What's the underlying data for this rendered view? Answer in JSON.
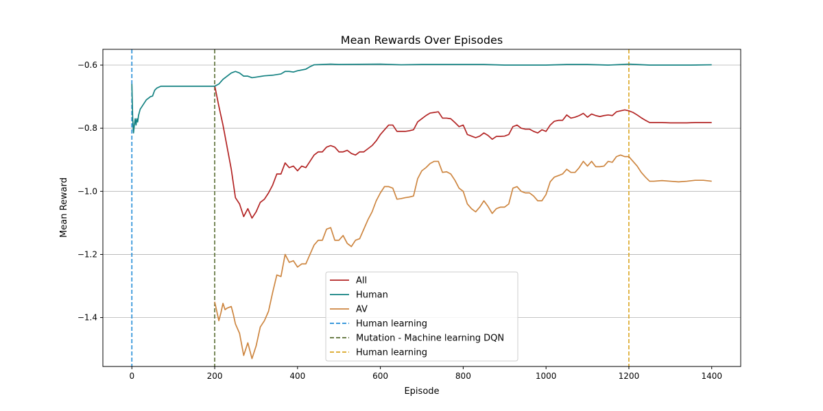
{
  "chart_data": {
    "type": "line",
    "title": "Mean Rewards Over Episodes",
    "xlabel": "Episode",
    "ylabel": "Mean Reward",
    "xlim": [
      -70,
      1470
    ],
    "ylim": [
      -1.555,
      -0.55
    ],
    "xticks": [
      0,
      200,
      400,
      600,
      800,
      1000,
      1200,
      1400
    ],
    "yticks": [
      -1.4,
      -1.2,
      -1.0,
      -0.8,
      -0.6
    ],
    "grid": "horizontal",
    "legend_position": "lower-center",
    "series": [
      {
        "name": "All",
        "color": "#b22222",
        "style": "solid",
        "points": [
          [
            200,
            -0.665
          ],
          [
            210,
            -0.73
          ],
          [
            220,
            -0.79
          ],
          [
            230,
            -0.86
          ],
          [
            240,
            -0.93
          ],
          [
            250,
            -1.02
          ],
          [
            260,
            -1.04
          ],
          [
            270,
            -1.08
          ],
          [
            280,
            -1.055
          ],
          [
            290,
            -1.085
          ],
          [
            300,
            -1.065
          ],
          [
            310,
            -1.035
          ],
          [
            320,
            -1.025
          ],
          [
            330,
            -1.005
          ],
          [
            340,
            -0.98
          ],
          [
            350,
            -0.945
          ],
          [
            360,
            -0.945
          ],
          [
            370,
            -0.91
          ],
          [
            380,
            -0.925
          ],
          [
            390,
            -0.92
          ],
          [
            400,
            -0.935
          ],
          [
            410,
            -0.92
          ],
          [
            420,
            -0.925
          ],
          [
            430,
            -0.905
          ],
          [
            440,
            -0.885
          ],
          [
            450,
            -0.875
          ],
          [
            460,
            -0.875
          ],
          [
            470,
            -0.86
          ],
          [
            480,
            -0.855
          ],
          [
            490,
            -0.86
          ],
          [
            500,
            -0.875
          ],
          [
            510,
            -0.875
          ],
          [
            520,
            -0.87
          ],
          [
            530,
            -0.88
          ],
          [
            540,
            -0.885
          ],
          [
            550,
            -0.875
          ],
          [
            560,
            -0.875
          ],
          [
            570,
            -0.865
          ],
          [
            580,
            -0.855
          ],
          [
            590,
            -0.84
          ],
          [
            600,
            -0.82
          ],
          [
            610,
            -0.805
          ],
          [
            620,
            -0.79
          ],
          [
            630,
            -0.79
          ],
          [
            640,
            -0.81
          ],
          [
            650,
            -0.81
          ],
          [
            660,
            -0.81
          ],
          [
            670,
            -0.808
          ],
          [
            680,
            -0.805
          ],
          [
            690,
            -0.78
          ],
          [
            700,
            -0.77
          ],
          [
            710,
            -0.76
          ],
          [
            720,
            -0.752
          ],
          [
            730,
            -0.75
          ],
          [
            740,
            -0.748
          ],
          [
            750,
            -0.768
          ],
          [
            760,
            -0.768
          ],
          [
            770,
            -0.77
          ],
          [
            780,
            -0.782
          ],
          [
            790,
            -0.795
          ],
          [
            800,
            -0.79
          ],
          [
            810,
            -0.82
          ],
          [
            820,
            -0.825
          ],
          [
            830,
            -0.83
          ],
          [
            840,
            -0.825
          ],
          [
            850,
            -0.815
          ],
          [
            860,
            -0.823
          ],
          [
            870,
            -0.835
          ],
          [
            880,
            -0.826
          ],
          [
            890,
            -0.826
          ],
          [
            900,
            -0.825
          ],
          [
            910,
            -0.82
          ],
          [
            920,
            -0.795
          ],
          [
            930,
            -0.79
          ],
          [
            940,
            -0.8
          ],
          [
            950,
            -0.803
          ],
          [
            960,
            -0.803
          ],
          [
            970,
            -0.81
          ],
          [
            980,
            -0.815
          ],
          [
            990,
            -0.805
          ],
          [
            1000,
            -0.81
          ],
          [
            1010,
            -0.79
          ],
          [
            1020,
            -0.778
          ],
          [
            1030,
            -0.775
          ],
          [
            1040,
            -0.775
          ],
          [
            1050,
            -0.758
          ],
          [
            1060,
            -0.768
          ],
          [
            1070,
            -0.765
          ],
          [
            1080,
            -0.76
          ],
          [
            1090,
            -0.753
          ],
          [
            1100,
            -0.765
          ],
          [
            1110,
            -0.755
          ],
          [
            1120,
            -0.76
          ],
          [
            1130,
            -0.763
          ],
          [
            1140,
            -0.76
          ],
          [
            1150,
            -0.758
          ],
          [
            1160,
            -0.76
          ],
          [
            1170,
            -0.748
          ],
          [
            1180,
            -0.745
          ],
          [
            1190,
            -0.742
          ],
          [
            1200,
            -0.745
          ],
          [
            1210,
            -0.75
          ],
          [
            1220,
            -0.758
          ],
          [
            1230,
            -0.767
          ],
          [
            1240,
            -0.775
          ],
          [
            1250,
            -0.782
          ],
          [
            1260,
            -0.782
          ],
          [
            1280,
            -0.782
          ],
          [
            1300,
            -0.783
          ],
          [
            1320,
            -0.783
          ],
          [
            1340,
            -0.783
          ],
          [
            1360,
            -0.782
          ],
          [
            1380,
            -0.782
          ],
          [
            1400,
            -0.782
          ]
        ]
      },
      {
        "name": "Human",
        "color": "#118080",
        "style": "solid",
        "points": [
          [
            0,
            -0.66
          ],
          [
            2,
            -0.77
          ],
          [
            4,
            -0.815
          ],
          [
            6,
            -0.79
          ],
          [
            8,
            -0.77
          ],
          [
            10,
            -0.79
          ],
          [
            12,
            -0.77
          ],
          [
            14,
            -0.78
          ],
          [
            16,
            -0.76
          ],
          [
            18,
            -0.75
          ],
          [
            20,
            -0.74
          ],
          [
            25,
            -0.73
          ],
          [
            30,
            -0.72
          ],
          [
            35,
            -0.71
          ],
          [
            40,
            -0.705
          ],
          [
            45,
            -0.7
          ],
          [
            50,
            -0.698
          ],
          [
            55,
            -0.68
          ],
          [
            60,
            -0.673
          ],
          [
            65,
            -0.67
          ],
          [
            70,
            -0.667
          ],
          [
            80,
            -0.667
          ],
          [
            100,
            -0.667
          ],
          [
            150,
            -0.667
          ],
          [
            200,
            -0.667
          ],
          [
            210,
            -0.66
          ],
          [
            220,
            -0.645
          ],
          [
            230,
            -0.635
          ],
          [
            240,
            -0.625
          ],
          [
            250,
            -0.62
          ],
          [
            260,
            -0.625
          ],
          [
            270,
            -0.635
          ],
          [
            280,
            -0.635
          ],
          [
            290,
            -0.64
          ],
          [
            300,
            -0.638
          ],
          [
            320,
            -0.634
          ],
          [
            340,
            -0.632
          ],
          [
            360,
            -0.628
          ],
          [
            370,
            -0.62
          ],
          [
            380,
            -0.62
          ],
          [
            390,
            -0.622
          ],
          [
            400,
            -0.618
          ],
          [
            420,
            -0.613
          ],
          [
            430,
            -0.605
          ],
          [
            440,
            -0.599
          ],
          [
            460,
            -0.598
          ],
          [
            480,
            -0.597
          ],
          [
            500,
            -0.598
          ],
          [
            600,
            -0.597
          ],
          [
            650,
            -0.599
          ],
          [
            700,
            -0.598
          ],
          [
            750,
            -0.598
          ],
          [
            800,
            -0.598
          ],
          [
            850,
            -0.598
          ],
          [
            900,
            -0.6
          ],
          [
            950,
            -0.6
          ],
          [
            1000,
            -0.6
          ],
          [
            1050,
            -0.598
          ],
          [
            1100,
            -0.598
          ],
          [
            1150,
            -0.6
          ],
          [
            1200,
            -0.597
          ],
          [
            1250,
            -0.6
          ],
          [
            1300,
            -0.6
          ],
          [
            1350,
            -0.6
          ],
          [
            1400,
            -0.599
          ]
        ]
      },
      {
        "name": "AV",
        "color": "#cd853f",
        "style": "solid",
        "points": [
          [
            200,
            -1.35
          ],
          [
            210,
            -1.41
          ],
          [
            215,
            -1.385
          ],
          [
            220,
            -1.355
          ],
          [
            225,
            -1.375
          ],
          [
            230,
            -1.37
          ],
          [
            240,
            -1.365
          ],
          [
            245,
            -1.39
          ],
          [
            250,
            -1.42
          ],
          [
            260,
            -1.45
          ],
          [
            270,
            -1.52
          ],
          [
            280,
            -1.48
          ],
          [
            290,
            -1.53
          ],
          [
            300,
            -1.49
          ],
          [
            310,
            -1.43
          ],
          [
            320,
            -1.41
          ],
          [
            330,
            -1.38
          ],
          [
            340,
            -1.32
          ],
          [
            350,
            -1.265
          ],
          [
            360,
            -1.27
          ],
          [
            370,
            -1.2
          ],
          [
            380,
            -1.225
          ],
          [
            390,
            -1.22
          ],
          [
            400,
            -1.24
          ],
          [
            410,
            -1.23
          ],
          [
            420,
            -1.23
          ],
          [
            430,
            -1.2
          ],
          [
            440,
            -1.17
          ],
          [
            450,
            -1.155
          ],
          [
            460,
            -1.155
          ],
          [
            470,
            -1.12
          ],
          [
            480,
            -1.115
          ],
          [
            490,
            -1.155
          ],
          [
            500,
            -1.155
          ],
          [
            510,
            -1.14
          ],
          [
            520,
            -1.165
          ],
          [
            530,
            -1.175
          ],
          [
            540,
            -1.155
          ],
          [
            550,
            -1.15
          ],
          [
            560,
            -1.12
          ],
          [
            570,
            -1.09
          ],
          [
            580,
            -1.065
          ],
          [
            590,
            -1.03
          ],
          [
            600,
            -1.005
          ],
          [
            610,
            -0.985
          ],
          [
            620,
            -0.985
          ],
          [
            630,
            -0.99
          ],
          [
            640,
            -1.025
          ],
          [
            650,
            -1.023
          ],
          [
            660,
            -1.02
          ],
          [
            670,
            -1.018
          ],
          [
            680,
            -1.015
          ],
          [
            690,
            -0.96
          ],
          [
            700,
            -0.935
          ],
          [
            710,
            -0.925
          ],
          [
            720,
            -0.912
          ],
          [
            730,
            -0.905
          ],
          [
            740,
            -0.905
          ],
          [
            750,
            -0.94
          ],
          [
            760,
            -0.938
          ],
          [
            770,
            -0.945
          ],
          [
            780,
            -0.965
          ],
          [
            790,
            -0.99
          ],
          [
            800,
            -1.0
          ],
          [
            810,
            -1.04
          ],
          [
            820,
            -1.055
          ],
          [
            830,
            -1.065
          ],
          [
            840,
            -1.05
          ],
          [
            850,
            -1.03
          ],
          [
            860,
            -1.048
          ],
          [
            870,
            -1.07
          ],
          [
            880,
            -1.055
          ],
          [
            890,
            -1.05
          ],
          [
            900,
            -1.05
          ],
          [
            910,
            -1.04
          ],
          [
            920,
            -0.99
          ],
          [
            930,
            -0.985
          ],
          [
            940,
            -1.0
          ],
          [
            950,
            -1.005
          ],
          [
            960,
            -1.005
          ],
          [
            970,
            -1.015
          ],
          [
            980,
            -1.03
          ],
          [
            990,
            -1.03
          ],
          [
            1000,
            -1.01
          ],
          [
            1010,
            -0.97
          ],
          [
            1020,
            -0.955
          ],
          [
            1030,
            -0.95
          ],
          [
            1040,
            -0.945
          ],
          [
            1050,
            -0.93
          ],
          [
            1060,
            -0.94
          ],
          [
            1070,
            -0.94
          ],
          [
            1080,
            -0.925
          ],
          [
            1090,
            -0.905
          ],
          [
            1100,
            -0.92
          ],
          [
            1110,
            -0.905
          ],
          [
            1120,
            -0.922
          ],
          [
            1130,
            -0.922
          ],
          [
            1140,
            -0.92
          ],
          [
            1150,
            -0.905
          ],
          [
            1160,
            -0.908
          ],
          [
            1170,
            -0.89
          ],
          [
            1180,
            -0.885
          ],
          [
            1190,
            -0.89
          ],
          [
            1200,
            -0.89
          ],
          [
            1210,
            -0.905
          ],
          [
            1220,
            -0.92
          ],
          [
            1230,
            -0.94
          ],
          [
            1240,
            -0.955
          ],
          [
            1250,
            -0.968
          ],
          [
            1260,
            -0.968
          ],
          [
            1280,
            -0.966
          ],
          [
            1300,
            -0.968
          ],
          [
            1320,
            -0.97
          ],
          [
            1340,
            -0.968
          ],
          [
            1360,
            -0.965
          ],
          [
            1380,
            -0.965
          ],
          [
            1400,
            -0.968
          ]
        ]
      }
    ],
    "vlines": [
      {
        "name": "Human learning",
        "x": 0,
        "color": "#1f8ad6",
        "style": "dashed"
      },
      {
        "name": "Mutation - Machine learning DQN",
        "x": 200,
        "color": "#556b2f",
        "style": "dashed"
      },
      {
        "name": "Human learning",
        "x": 1200,
        "color": "#daa520",
        "style": "dashed"
      }
    ]
  }
}
